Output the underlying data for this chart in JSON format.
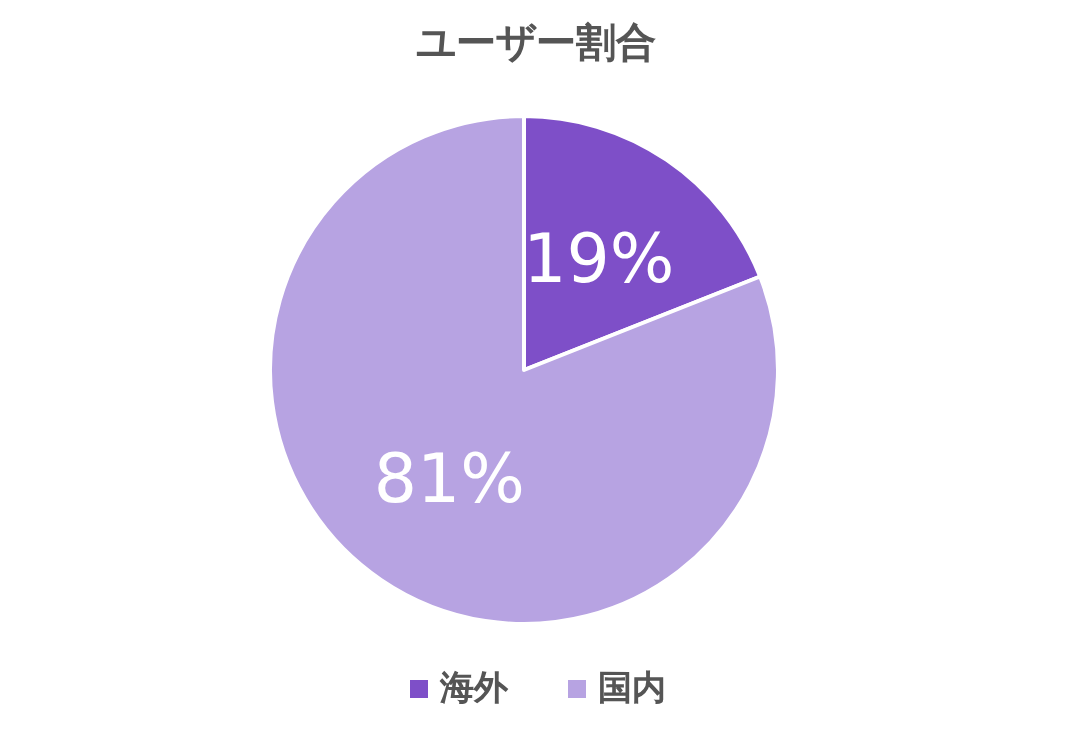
{
  "chart_data": {
    "type": "pie",
    "title": "ユーザー割合",
    "categories": [
      "海外",
      "国内"
    ],
    "values": [
      19,
      81
    ],
    "value_labels": [
      "19%",
      "81%"
    ],
    "colors": [
      "#7e4fc8",
      "#b7a3e2"
    ],
    "legend": "bottom"
  }
}
